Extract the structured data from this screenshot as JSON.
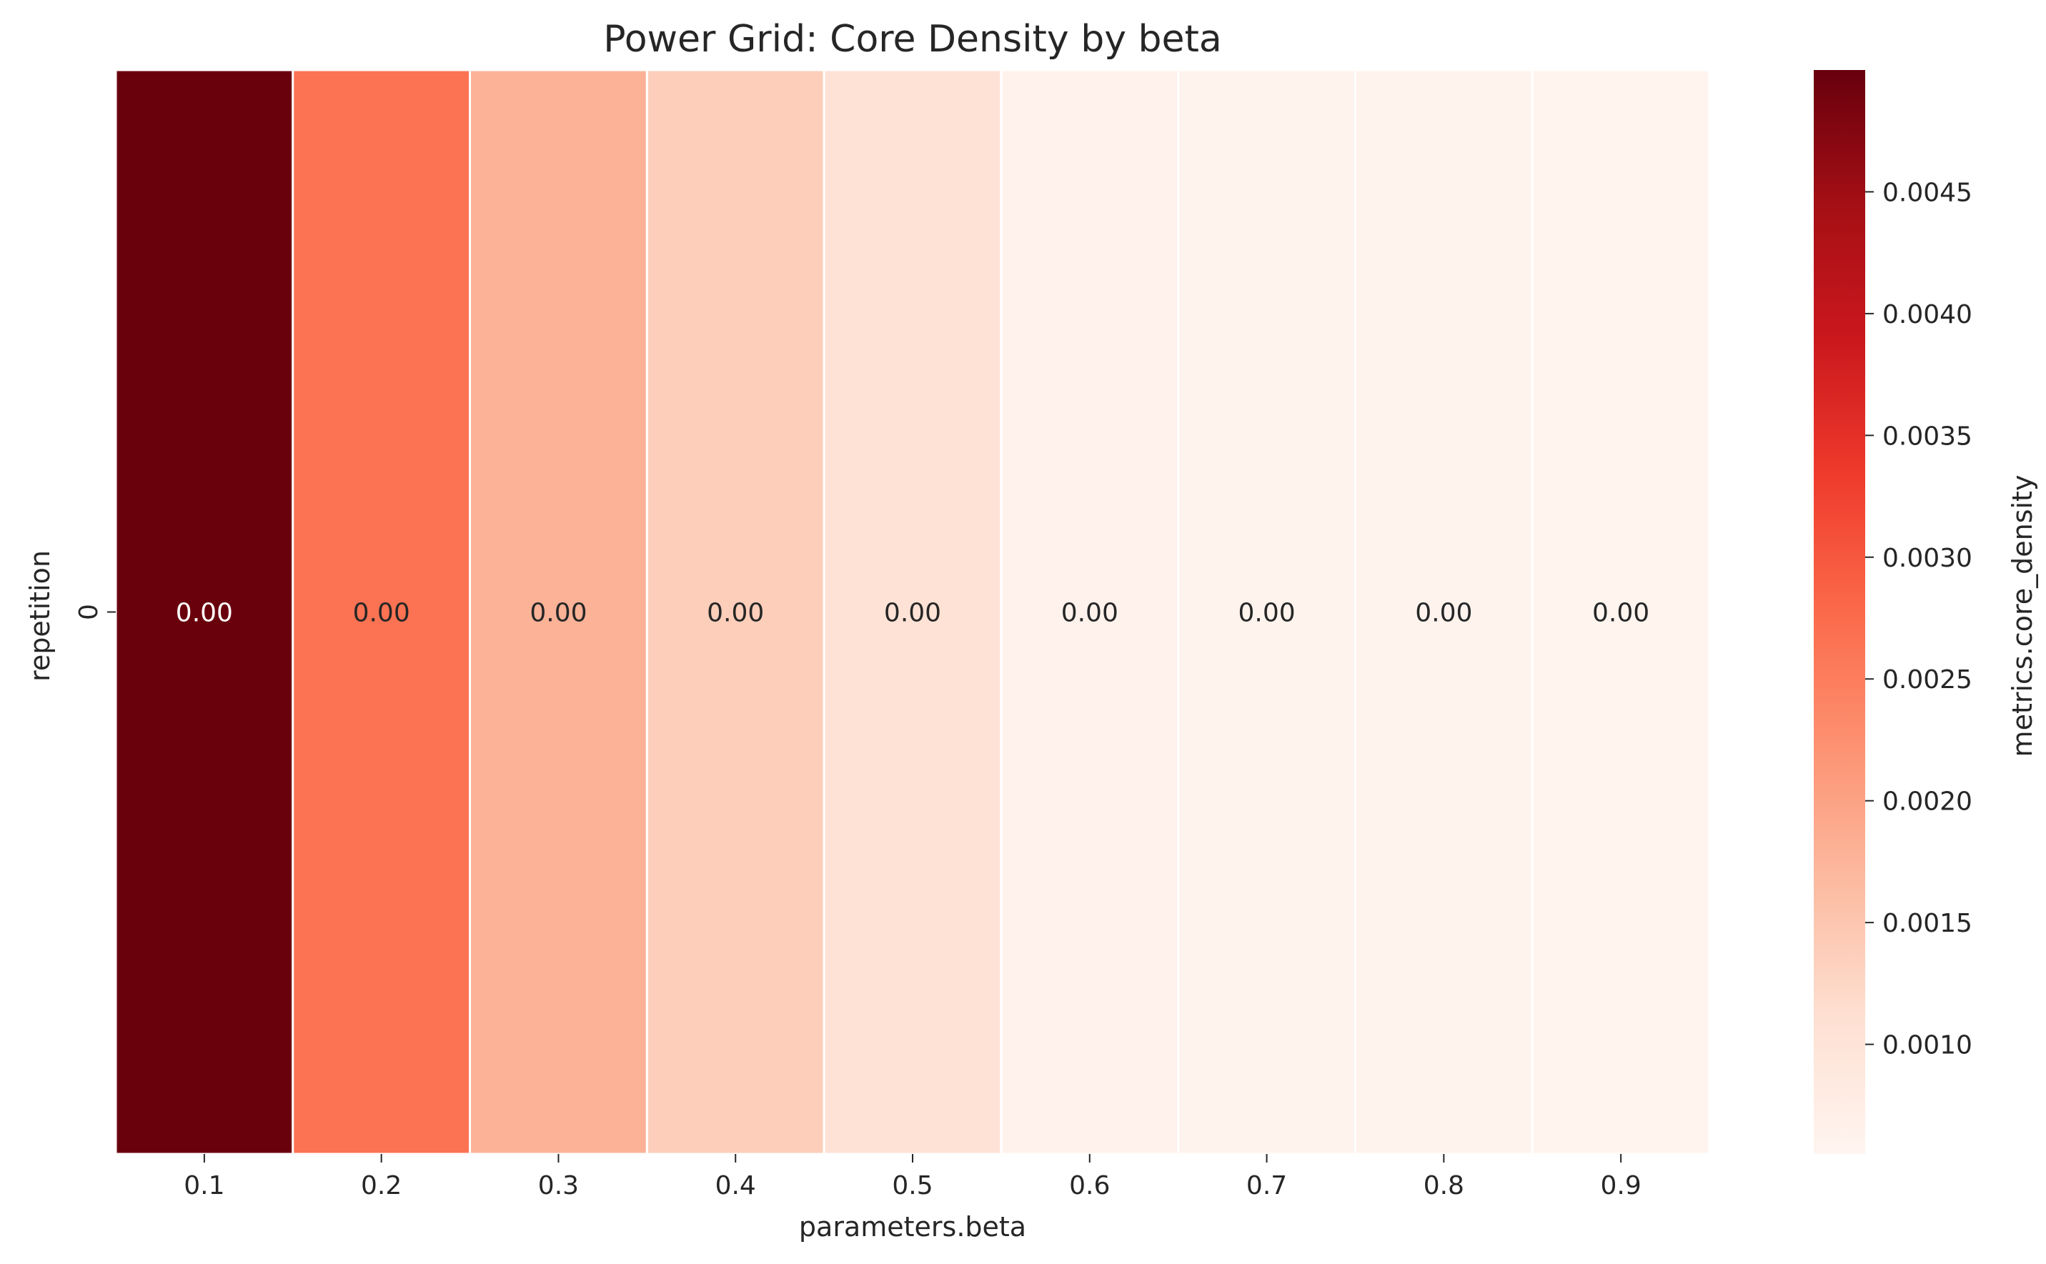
{
  "chart_data": {
    "type": "heatmap",
    "title": "Power Grid: Core Density by beta",
    "xlabel": "parameters.beta",
    "ylabel": "repetition",
    "x_categories": [
      "0.1",
      "0.2",
      "0.3",
      "0.4",
      "0.5",
      "0.6",
      "0.7",
      "0.8",
      "0.9"
    ],
    "y_categories": [
      "0"
    ],
    "values": [
      [
        0.00498,
        0.00265,
        0.00178,
        0.00138,
        0.00105,
        0.00063,
        0.00061,
        0.00059,
        0.00058
      ]
    ],
    "annotations": [
      [
        "0.00",
        "0.00",
        "0.00",
        "0.00",
        "0.00",
        "0.00",
        "0.00",
        "0.00",
        "0.00"
      ]
    ],
    "colorbar": {
      "label": "metrics.core_density",
      "colormap": "Reds",
      "range": [
        0.00055,
        0.005
      ],
      "ticks": [
        0.001,
        0.0015,
        0.002,
        0.0025,
        0.003,
        0.0035,
        0.004,
        0.0045
      ],
      "tick_labels": [
        "0.0010",
        "0.0015",
        "0.0020",
        "0.0025",
        "0.0030",
        "0.0035",
        "0.0040",
        "0.0045"
      ]
    }
  }
}
